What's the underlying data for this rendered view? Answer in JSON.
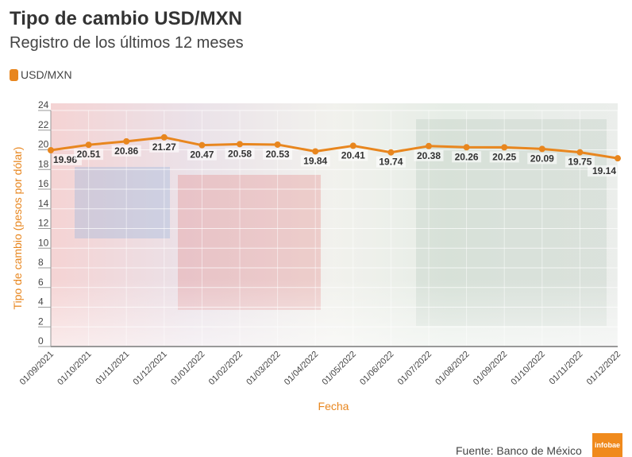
{
  "header": {
    "title": "Tipo de cambio USD/MXN",
    "subtitle": "Registro de los últimos 12 meses"
  },
  "legend": {
    "label": "USD/MXN",
    "color": "#e8861e"
  },
  "axes": {
    "ylabel": "Tipo de cambio (pesos por dólar)",
    "xlabel": "Fecha"
  },
  "footer": {
    "source": "Fuente: Banco de México",
    "logo": "infobae"
  },
  "chart_data": {
    "type": "line",
    "title": "Tipo de cambio USD/MXN",
    "subtitle": "Registro de los últimos 12 meses",
    "xlabel": "Fecha",
    "ylabel": "Tipo de cambio (pesos por dólar)",
    "ylim": [
      0,
      24
    ],
    "yticks": [
      0,
      2,
      4,
      6,
      8,
      10,
      12,
      14,
      16,
      18,
      20,
      22,
      24
    ],
    "grid": true,
    "legend_position": "top-left",
    "categories": [
      "01/09/2021",
      "01/10/2021",
      "01/11/2021",
      "01/12/2021",
      "01/01/2022",
      "01/02/2022",
      "01/03/2022",
      "01/04/2022",
      "01/05/2022",
      "01/06/2022",
      "01/07/2022",
      "01/08/2022",
      "01/09/2022",
      "01/10/2022",
      "01/11/2022",
      "01/12/2022"
    ],
    "series": [
      {
        "name": "USD/MXN",
        "color": "#e8861e",
        "values": [
          19.96,
          20.51,
          20.86,
          21.27,
          20.47,
          20.58,
          20.53,
          19.84,
          20.41,
          19.74,
          20.38,
          20.26,
          20.25,
          20.09,
          19.75,
          19.14
        ]
      }
    ]
  }
}
